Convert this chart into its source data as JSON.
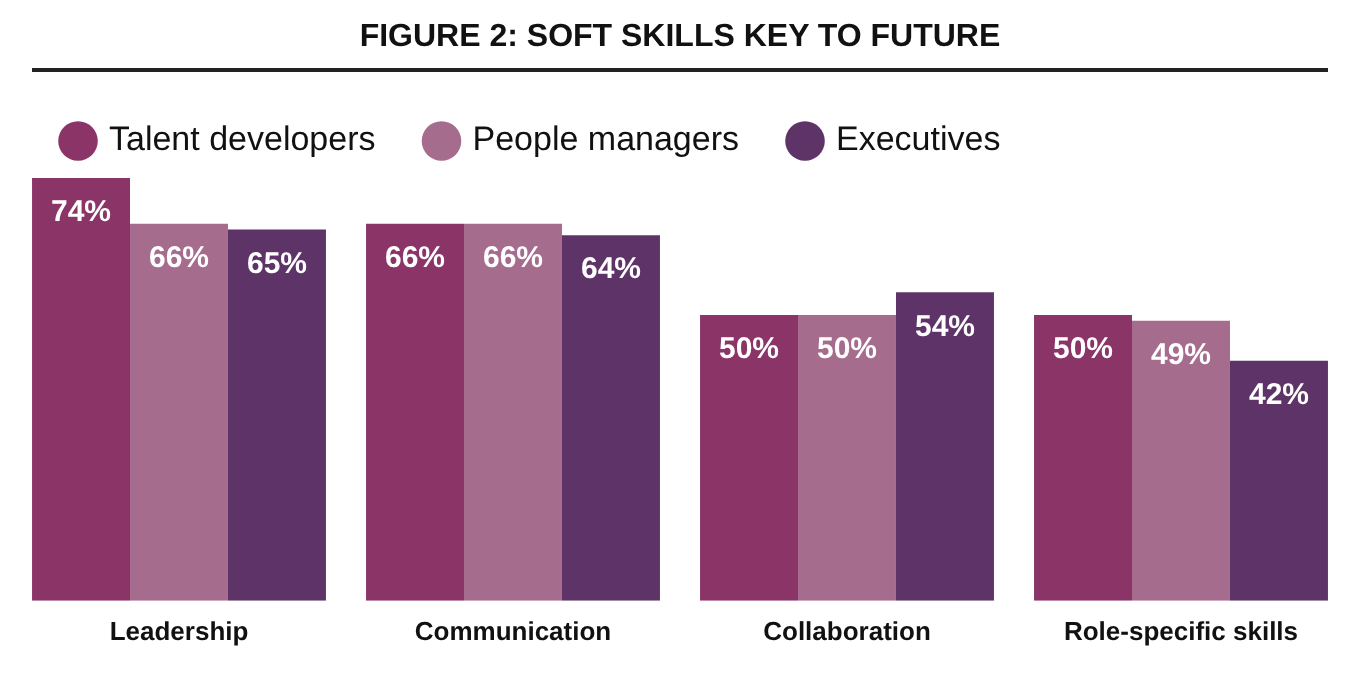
{
  "chart_data": {
    "type": "bar",
    "title": "FIGURE 2: SOFT SKILLS KEY TO FUTURE",
    "categories": [
      "Leadership",
      "Communication",
      "Collaboration",
      "Role-specific skills"
    ],
    "series": [
      {
        "name": "Talent developers",
        "color": "#8a3468",
        "values": [
          74,
          66,
          50,
          50
        ],
        "value_labels": [
          "74%",
          "66%",
          "50%",
          "50%"
        ]
      },
      {
        "name": "People managers",
        "color": "#a66c8e",
        "values": [
          66,
          66,
          50,
          49
        ],
        "value_labels": [
          "66%",
          "66%",
          "50%",
          "49%"
        ]
      },
      {
        "name": "Executives",
        "color": "#5e3468",
        "values": [
          65,
          64,
          54,
          42
        ],
        "value_labels": [
          "65%",
          "64%",
          "54%",
          "42%"
        ]
      }
    ],
    "grid": false,
    "legend": "top left"
  }
}
